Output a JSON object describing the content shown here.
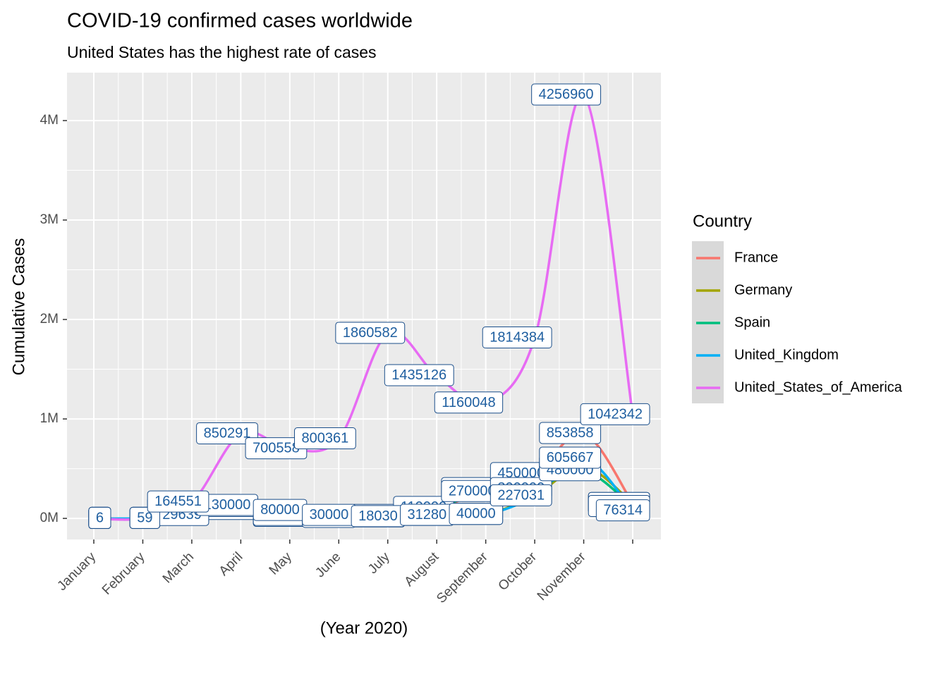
{
  "chart_data": {
    "type": "line",
    "title": "COVID-19 confirmed cases worldwide",
    "subtitle": "United States has the highest rate of cases",
    "x_label": "(Year 2020)",
    "y_label": "Cumulative Cases",
    "legend_title": "Country",
    "categories": [
      "January",
      "February",
      "March",
      "April",
      "May",
      "June",
      "July",
      "August",
      "September",
      "October",
      "November",
      null
    ],
    "series": [
      {
        "name": "France",
        "color": "#F8766D",
        "values": [
          5,
          95,
          52000,
          114000,
          22000,
          11000,
          21000,
          90000,
          300000,
          450000,
          853858,
          150000
        ]
      },
      {
        "name": "Germany",
        "color": "#A3A500",
        "values": [
          5,
          50,
          70000,
          90000,
          20000,
          12000,
          15000,
          30000,
          40000,
          230000,
          520000,
          150000
        ]
      },
      {
        "name": "Spain",
        "color": "#00BF7D",
        "values": [
          0,
          50,
          100000,
          120000,
          30000,
          10000,
          30000,
          110000,
          270000,
          300000,
          480000,
          120000
        ]
      },
      {
        "name": "United_Kingdom",
        "color": "#00B0F6",
        "values": [
          2,
          20,
          29639,
          130000,
          80000,
          30000,
          18030,
          31280,
          40000,
          227031,
          605667,
          76314
        ]
      },
      {
        "name": "United_States_of_America",
        "color": "#E76BF3",
        "values": [
          6,
          59,
          164551,
          850291,
          700558,
          800361,
          1860582,
          1435126,
          1160048,
          1814384,
          4256960,
          1042342
        ]
      }
    ],
    "ylim": [
      -212000,
      4482000
    ],
    "yticks": [
      {
        "value": 0,
        "label": "0M"
      },
      {
        "value": 1000000,
        "label": "1M"
      },
      {
        "value": 2000000,
        "label": "2M"
      },
      {
        "value": 3000000,
        "label": "3M"
      },
      {
        "value": 4000000,
        "label": "4M"
      }
    ],
    "grid": true
  }
}
